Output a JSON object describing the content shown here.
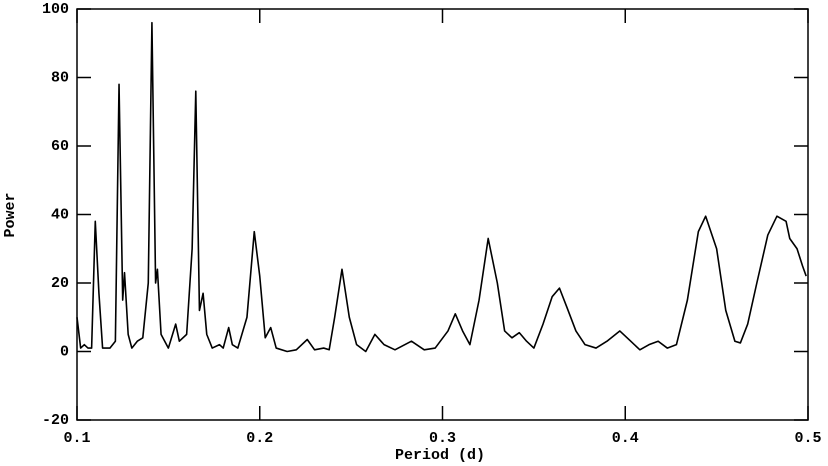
{
  "chart_data": {
    "type": "line",
    "xlabel": "Period (d)",
    "ylabel": "Power",
    "xlim": [
      0.1,
      0.5
    ],
    "xticks": [
      0.1,
      0.2,
      0.3,
      0.4,
      0.5
    ],
    "ylim": [
      -20,
      100
    ],
    "yticks": [
      -20,
      0,
      20,
      40,
      60,
      80,
      100
    ],
    "grid": false,
    "series": [
      {
        "name": "Power",
        "color": "#000000",
        "x": [
          0.1,
          0.102,
          0.104,
          0.106,
          0.108,
          0.11,
          0.112,
          0.114,
          0.118,
          0.121,
          0.123,
          0.125,
          0.126,
          0.128,
          0.13,
          0.133,
          0.136,
          0.139,
          0.141,
          0.143,
          0.144,
          0.146,
          0.15,
          0.154,
          0.156,
          0.16,
          0.163,
          0.165,
          0.167,
          0.169,
          0.171,
          0.174,
          0.178,
          0.18,
          0.183,
          0.185,
          0.188,
          0.193,
          0.197,
          0.2,
          0.203,
          0.206,
          0.209,
          0.215,
          0.22,
          0.226,
          0.23,
          0.235,
          0.238,
          0.241,
          0.245,
          0.249,
          0.253,
          0.258,
          0.263,
          0.268,
          0.274,
          0.283,
          0.29,
          0.296,
          0.303,
          0.307,
          0.311,
          0.315,
          0.32,
          0.325,
          0.33,
          0.334,
          0.338,
          0.342,
          0.346,
          0.35,
          0.355,
          0.36,
          0.364,
          0.368,
          0.373,
          0.378,
          0.384,
          0.39,
          0.397,
          0.403,
          0.408,
          0.413,
          0.418,
          0.423,
          0.428,
          0.434,
          0.44,
          0.444,
          0.45,
          0.455,
          0.46,
          0.463,
          0.467,
          0.472,
          0.478,
          0.483,
          0.488,
          0.49,
          0.494,
          0.497,
          0.499
        ],
        "values": [
          10,
          1,
          2,
          1,
          1,
          38,
          17,
          1,
          1,
          3,
          78,
          15,
          23,
          5,
          1,
          3,
          4,
          20,
          96,
          20,
          24,
          5,
          1,
          8,
          3,
          5,
          30,
          76,
          12,
          17,
          5,
          1,
          2,
          1,
          7,
          2,
          1,
          10,
          35,
          22,
          4,
          7,
          1,
          0,
          0.5,
          3.5,
          0.5,
          1,
          0.5,
          10,
          24,
          10,
          2,
          0,
          5,
          2,
          0.5,
          3,
          0.5,
          1,
          6,
          11,
          6,
          2,
          15,
          33,
          20,
          6,
          4,
          5.5,
          3,
          1,
          8,
          16,
          18.5,
          13,
          6,
          2,
          1,
          3,
          6,
          3,
          0.5,
          2,
          3,
          1,
          2,
          15,
          35,
          39.5,
          30,
          12,
          3,
          2.5,
          8,
          20,
          34,
          39.5,
          38,
          33,
          30,
          25,
          22
        ]
      }
    ]
  }
}
